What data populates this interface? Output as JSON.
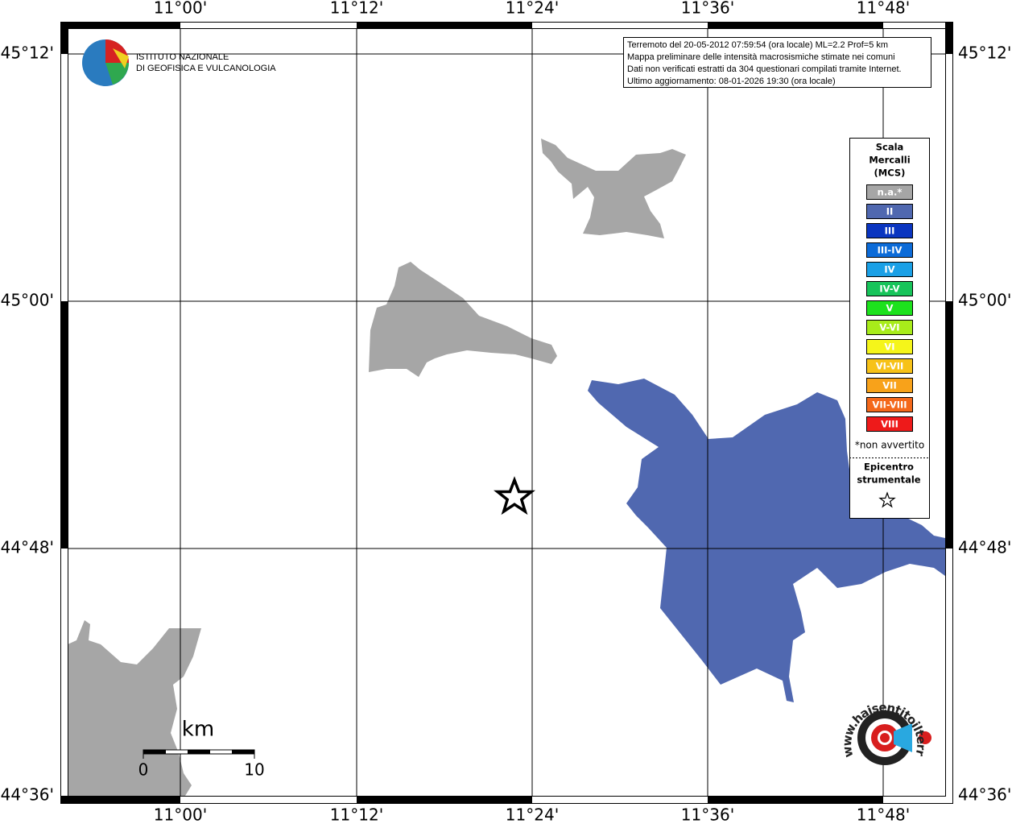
{
  "map": {
    "lon_labels": [
      "11°00'",
      "11°12'",
      "11°24'",
      "11°36'",
      "11°48'"
    ],
    "lat_labels": [
      "45°12'",
      "45°00'",
      "44°48'",
      "44°36'"
    ],
    "info": [
      "Terremoto del 20-05-2012 07:59:54 (ora locale) ML=2.2 Prof=5 km",
      "Mappa preliminare delle intensità macrosismiche stimate nei comuni",
      "Dati non verificati estratti da 304 questionari compilati tramite Internet.",
      "Ultimo aggiornamento: 08-01-2026 19:30 (ora locale)"
    ],
    "logo": [
      "ISTITUTO NAZIONALE",
      "DI GEOFISICA E VULCANOLOGIA"
    ],
    "legend": {
      "title": [
        "Scala",
        "Mercalli",
        "(MCS)"
      ],
      "items": [
        {
          "label": "n.a.*",
          "color": "#a6a6a6"
        },
        {
          "label": "II",
          "color": "#5068b0"
        },
        {
          "label": "III",
          "color": "#0a35c0"
        },
        {
          "label": "III-IV",
          "color": "#0c6bd8"
        },
        {
          "label": "IV",
          "color": "#1aa0e6"
        },
        {
          "label": "IV-V",
          "color": "#17c45a"
        },
        {
          "label": "V",
          "color": "#1de21d"
        },
        {
          "label": "V-VI",
          "color": "#a8ec1a"
        },
        {
          "label": "VI",
          "color": "#f5f51a"
        },
        {
          "label": "VI-VII",
          "color": "#f7c218"
        },
        {
          "label": "VII",
          "color": "#f8a21a"
        },
        {
          "label": "VII-VIII",
          "color": "#f4681a"
        },
        {
          "label": "VIII",
          "color": "#ee1a1a"
        }
      ],
      "note": "*non avvertito",
      "epicenter": [
        "Epicentro",
        "strumentale"
      ]
    },
    "scale_bar": {
      "unit": "km",
      "labels": [
        "0",
        "10"
      ]
    },
    "site_logo": "www.haisentitoilterremoto.it"
  }
}
